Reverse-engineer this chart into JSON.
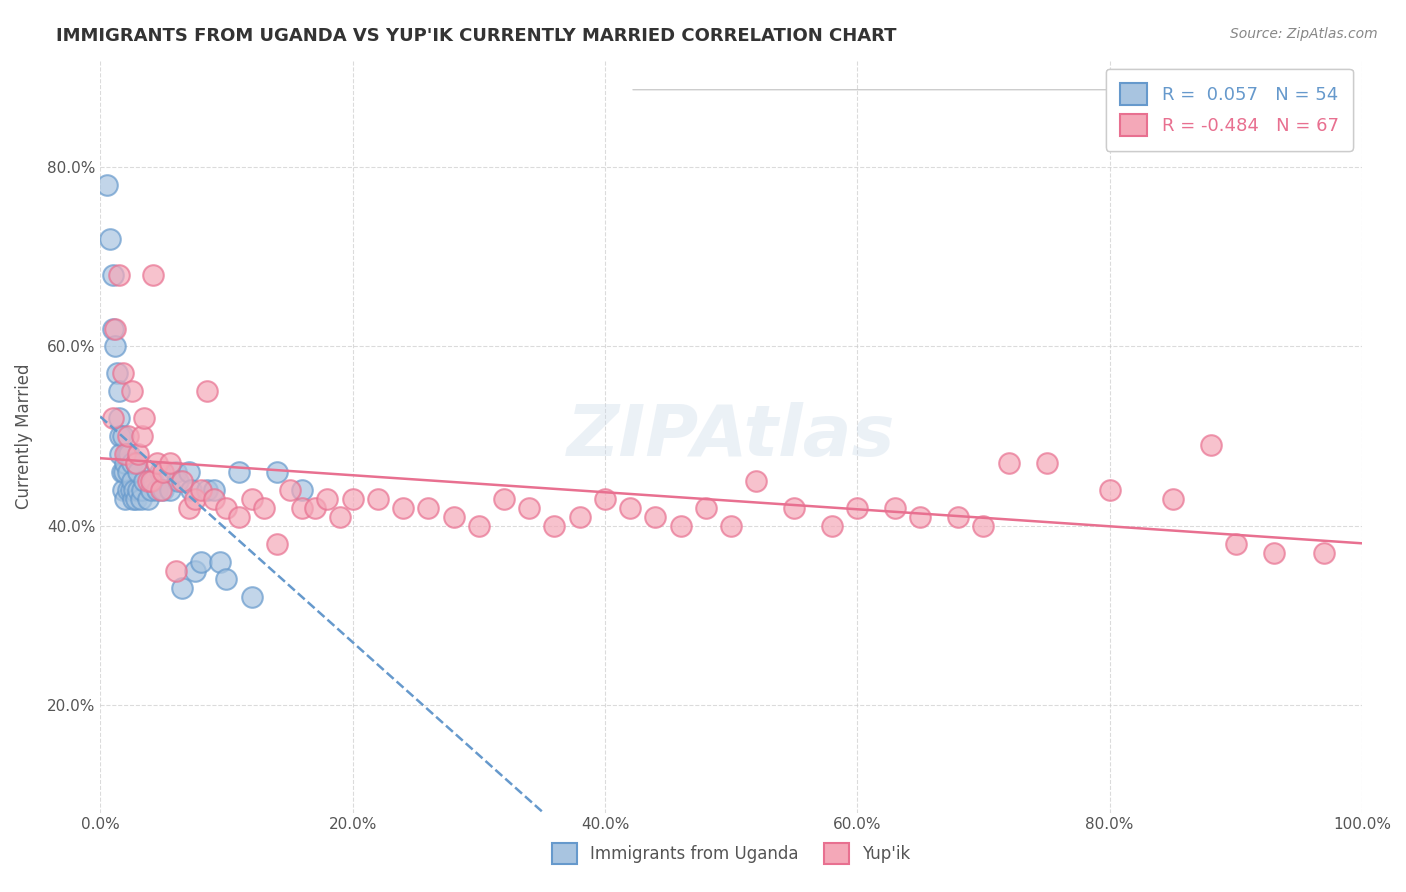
{
  "title": "IMMIGRANTS FROM UGANDA VS YUP'IK CURRENTLY MARRIED CORRELATION CHART",
  "source_text": "Source: ZipAtlas.com",
  "xlabel_bottom": "",
  "ylabel": "Currently Married",
  "legend_label_blue": "Immigrants from Uganda",
  "legend_label_pink": "Yup'ik",
  "R_blue": 0.057,
  "N_blue": 54,
  "R_pink": -0.484,
  "N_pink": 67,
  "xlim": [
    0.0,
    1.0
  ],
  "ylim": [
    0.08,
    0.92
  ],
  "x_ticks": [
    0.0,
    0.2,
    0.4,
    0.6,
    0.8,
    1.0
  ],
  "x_tick_labels": [
    "0.0%",
    "20.0%",
    "40.0%",
    "60.0%",
    "80.0%",
    "100.0%"
  ],
  "y_ticks": [
    0.2,
    0.4,
    0.6,
    0.8
  ],
  "y_tick_labels": [
    "20.0%",
    "40.0%",
    "60.0%",
    "80.0%"
  ],
  "watermark": "ZIPAtlas",
  "color_blue": "#a8c4e0",
  "color_pink": "#f4a8b8",
  "line_color_blue": "#6699cc",
  "line_color_pink": "#e87090",
  "background_color": "#ffffff",
  "grid_color": "#cccccc",
  "blue_x": [
    0.005,
    0.008,
    0.01,
    0.01,
    0.012,
    0.013,
    0.015,
    0.015,
    0.016,
    0.016,
    0.017,
    0.018,
    0.018,
    0.019,
    0.02,
    0.02,
    0.021,
    0.022,
    0.022,
    0.023,
    0.024,
    0.025,
    0.025,
    0.026,
    0.027,
    0.028,
    0.028,
    0.03,
    0.03,
    0.032,
    0.033,
    0.035,
    0.038,
    0.04,
    0.042,
    0.045,
    0.047,
    0.05,
    0.055,
    0.06,
    0.062,
    0.065,
    0.07,
    0.072,
    0.075,
    0.08,
    0.085,
    0.09,
    0.095,
    0.1,
    0.11,
    0.12,
    0.14,
    0.16
  ],
  "blue_y": [
    0.78,
    0.72,
    0.68,
    0.62,
    0.6,
    0.57,
    0.55,
    0.52,
    0.5,
    0.48,
    0.46,
    0.44,
    0.5,
    0.46,
    0.47,
    0.43,
    0.48,
    0.44,
    0.46,
    0.48,
    0.44,
    0.45,
    0.47,
    0.43,
    0.44,
    0.47,
    0.43,
    0.44,
    0.46,
    0.43,
    0.44,
    0.45,
    0.43,
    0.44,
    0.45,
    0.44,
    0.46,
    0.44,
    0.44,
    0.46,
    0.45,
    0.33,
    0.46,
    0.44,
    0.35,
    0.36,
    0.44,
    0.44,
    0.36,
    0.34,
    0.46,
    0.32,
    0.46,
    0.44
  ],
  "pink_x": [
    0.01,
    0.012,
    0.015,
    0.018,
    0.02,
    0.022,
    0.025,
    0.028,
    0.03,
    0.033,
    0.035,
    0.038,
    0.04,
    0.042,
    0.045,
    0.048,
    0.05,
    0.055,
    0.06,
    0.065,
    0.07,
    0.075,
    0.08,
    0.085,
    0.09,
    0.1,
    0.11,
    0.12,
    0.13,
    0.14,
    0.15,
    0.16,
    0.17,
    0.18,
    0.19,
    0.2,
    0.22,
    0.24,
    0.26,
    0.28,
    0.3,
    0.32,
    0.34,
    0.36,
    0.38,
    0.4,
    0.42,
    0.44,
    0.46,
    0.48,
    0.5,
    0.52,
    0.55,
    0.58,
    0.6,
    0.63,
    0.65,
    0.68,
    0.7,
    0.72,
    0.75,
    0.8,
    0.85,
    0.88,
    0.9,
    0.93,
    0.97
  ],
  "pink_y": [
    0.52,
    0.62,
    0.68,
    0.57,
    0.48,
    0.5,
    0.55,
    0.47,
    0.48,
    0.5,
    0.52,
    0.45,
    0.45,
    0.68,
    0.47,
    0.44,
    0.46,
    0.47,
    0.35,
    0.45,
    0.42,
    0.43,
    0.44,
    0.55,
    0.43,
    0.42,
    0.41,
    0.43,
    0.42,
    0.38,
    0.44,
    0.42,
    0.42,
    0.43,
    0.41,
    0.43,
    0.43,
    0.42,
    0.42,
    0.41,
    0.4,
    0.43,
    0.42,
    0.4,
    0.41,
    0.43,
    0.42,
    0.41,
    0.4,
    0.42,
    0.4,
    0.45,
    0.42,
    0.4,
    0.42,
    0.42,
    0.41,
    0.41,
    0.4,
    0.47,
    0.47,
    0.44,
    0.43,
    0.49,
    0.38,
    0.37,
    0.37
  ]
}
